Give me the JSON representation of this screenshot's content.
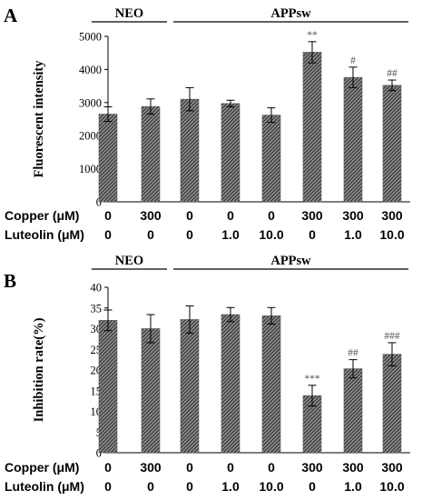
{
  "chart_data": [
    {
      "type": "bar",
      "panel_label": "A",
      "ylabel": "Fluorescent intensity",
      "ylim": [
        0,
        5000
      ],
      "yticks": [
        "0",
        "1000",
        "2000",
        "3000",
        "4000",
        "5000"
      ],
      "ytick_values": [
        0,
        1000,
        2000,
        3000,
        4000,
        5000
      ],
      "values": [
        2650,
        2880,
        3100,
        2970,
        2620,
        4520,
        3760,
        3520
      ],
      "errors": [
        220,
        230,
        350,
        100,
        220,
        320,
        310,
        160
      ],
      "annotations": [
        "",
        "",
        "",
        "",
        "",
        "**",
        "#",
        "##"
      ],
      "groups": [
        {
          "label": "NEO",
          "from": 0,
          "to": 1
        },
        {
          "label": "APPsw",
          "from": 2,
          "to": 7
        }
      ],
      "conditions": [
        {
          "label": "Copper (μM)",
          "values": [
            "0",
            "300",
            "0",
            "0",
            "0",
            "300",
            "300",
            "300"
          ]
        },
        {
          "label": "Luteolin (μM)",
          "values": [
            "0",
            "0",
            "0",
            "1.0",
            "10.0",
            "0",
            "1.0",
            "10.0"
          ]
        }
      ]
    },
    {
      "type": "bar",
      "panel_label": "B",
      "ylabel": "Inhibition rate(%)",
      "ylim": [
        0,
        40
      ],
      "yticks": [
        "0",
        "5",
        "10",
        "15",
        "20",
        "25",
        "30",
        "35",
        "40"
      ],
      "ytick_values": [
        0,
        5,
        10,
        15,
        20,
        25,
        30,
        35,
        40
      ],
      "values": [
        32.0,
        30.0,
        32.2,
        33.4,
        33.1,
        13.8,
        20.3,
        23.8
      ],
      "errors": [
        2.5,
        3.4,
        3.3,
        1.7,
        2.0,
        2.5,
        2.2,
        2.8
      ],
      "annotations": [
        "",
        "",
        "",
        "",
        "",
        "***",
        "##",
        "###"
      ],
      "groups": [
        {
          "label": "NEO",
          "from": 0,
          "to": 1
        },
        {
          "label": "APPsw",
          "from": 2,
          "to": 7
        }
      ],
      "conditions": [
        {
          "label": "Copper (μM)",
          "values": [
            "0",
            "300",
            "0",
            "0",
            "0",
            "300",
            "300",
            "300"
          ]
        },
        {
          "label": "Luteolin (μM)",
          "values": [
            "0",
            "0",
            "0",
            "1.0",
            "10.0",
            "0",
            "1.0",
            "10.0"
          ]
        }
      ]
    }
  ],
  "colors": {
    "bar_fill": "#8c8c8c",
    "bar_hatch": "#2a2a2a",
    "axis": "#000000",
    "annotation": "#555555"
  }
}
